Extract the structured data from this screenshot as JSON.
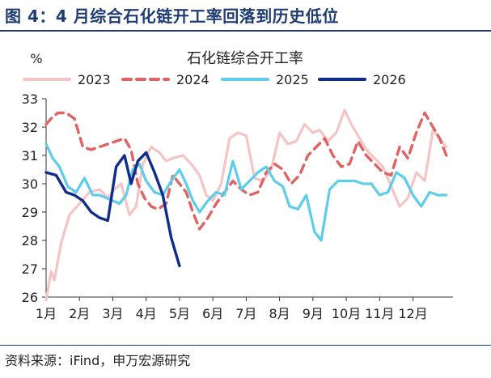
{
  "figure": {
    "title": "图 4：4 月综合石化链开工率回落到历史低位",
    "source": "资料来源：iFind，申万宏源研究"
  },
  "chart_data": {
    "type": "line",
    "title": "石化链综合开工率",
    "ylabel": "%",
    "xlabel": "",
    "ylim": [
      26,
      33
    ],
    "yticks": [
      26,
      27,
      28,
      29,
      30,
      31,
      32,
      33
    ],
    "x_axis": {
      "min": 1,
      "max": 13.2,
      "ticks": [
        1,
        2,
        3,
        4,
        5,
        6,
        7,
        8,
        9,
        10,
        11,
        12
      ],
      "tick_labels": [
        "1月",
        "2月",
        "3月",
        "4月",
        "5月",
        "6月",
        "7月",
        "8月",
        "9月",
        "10月",
        "11月",
        "12月"
      ]
    },
    "grid": false,
    "legend_position": "top",
    "series": [
      {
        "name": "2023",
        "color": "#f5c4c4",
        "dash": "solid",
        "x": [
          1.0,
          1.15,
          1.25,
          1.45,
          1.7,
          2.0,
          2.3,
          2.6,
          2.85,
          3.05,
          3.25,
          3.5,
          3.7,
          3.9,
          4.15,
          4.4,
          4.6,
          4.8,
          5.1,
          5.35,
          5.6,
          5.8,
          6.0,
          6.25,
          6.5,
          6.75,
          7.0,
          7.25,
          7.5,
          7.75,
          8.0,
          8.25,
          8.5,
          8.75,
          9.0,
          9.2,
          9.45,
          9.7,
          9.95,
          10.15,
          10.4,
          10.6,
          10.85,
          11.1,
          11.35,
          11.6,
          11.85,
          12.1,
          12.35,
          12.6,
          12.8,
          13.0
        ],
        "y": [
          25.9,
          26.9,
          26.6,
          27.9,
          28.9,
          29.3,
          29.7,
          29.8,
          29.5,
          29.8,
          30.0,
          28.9,
          29.2,
          30.7,
          31.3,
          31.1,
          30.8,
          30.9,
          31.0,
          30.7,
          30.3,
          29.6,
          29.4,
          30.0,
          31.6,
          31.8,
          31.7,
          30.2,
          30.1,
          30.5,
          31.8,
          31.4,
          31.5,
          32.1,
          31.8,
          31.9,
          31.5,
          31.8,
          32.6,
          32.1,
          31.6,
          31.2,
          30.9,
          30.6,
          29.9,
          29.2,
          29.5,
          30.4,
          30.1,
          31.9,
          31.6,
          31.3
        ]
      },
      {
        "name": "2024",
        "color": "#e06363",
        "dash": "dash",
        "x": [
          1.0,
          1.15,
          1.35,
          1.6,
          1.85,
          2.1,
          2.35,
          2.6,
          2.85,
          3.1,
          3.35,
          3.55,
          3.75,
          3.95,
          4.15,
          4.35,
          4.6,
          4.8,
          5.0,
          5.2,
          5.4,
          5.6,
          5.85,
          6.1,
          6.35,
          6.6,
          6.85,
          7.1,
          7.35,
          7.6,
          7.85,
          8.1,
          8.35,
          8.6,
          8.85,
          9.1,
          9.35,
          9.6,
          9.85,
          10.1,
          10.35,
          10.6,
          10.85,
          11.1,
          11.35,
          11.6,
          11.85,
          12.1,
          12.35,
          12.6,
          12.8,
          13.0
        ],
        "y": [
          32.1,
          32.3,
          32.5,
          32.5,
          32.3,
          31.3,
          31.2,
          31.3,
          31.4,
          31.5,
          31.6,
          31.2,
          30.0,
          29.5,
          29.2,
          29.1,
          29.3,
          30.3,
          30.0,
          29.7,
          29.0,
          28.4,
          28.8,
          29.3,
          29.7,
          30.1,
          29.8,
          29.6,
          29.7,
          30.4,
          30.7,
          30.5,
          30.0,
          30.3,
          31.0,
          31.3,
          31.6,
          31.0,
          30.6,
          30.7,
          31.5,
          31.0,
          30.7,
          30.4,
          30.3,
          31.3,
          30.9,
          31.8,
          32.5,
          32.0,
          31.6,
          31.0
        ]
      },
      {
        "name": "2025",
        "color": "#5ecdea",
        "dash": "solid",
        "x": [
          1.0,
          1.2,
          1.4,
          1.65,
          1.9,
          2.15,
          2.4,
          2.6,
          2.8,
          3.0,
          3.2,
          3.4,
          3.6,
          3.8,
          4.0,
          4.25,
          4.5,
          4.75,
          5.0,
          5.2,
          5.4,
          5.6,
          5.85,
          6.1,
          6.35,
          6.6,
          6.85,
          7.1,
          7.35,
          7.6,
          7.85,
          8.1,
          8.3,
          8.55,
          8.8,
          9.05,
          9.25,
          9.5,
          9.75,
          10.0,
          10.25,
          10.5,
          10.75,
          11.0,
          11.25,
          11.5,
          11.75,
          12.0,
          12.25,
          12.5,
          12.75,
          13.0
        ],
        "y": [
          31.4,
          30.9,
          30.6,
          29.9,
          29.7,
          30.2,
          29.6,
          29.6,
          29.5,
          29.4,
          29.3,
          29.6,
          30.5,
          30.7,
          30.1,
          29.7,
          29.6,
          30.1,
          30.5,
          30.0,
          29.4,
          29.0,
          29.4,
          29.7,
          29.6,
          30.8,
          29.8,
          30.1,
          30.4,
          30.6,
          30.1,
          29.9,
          29.2,
          29.1,
          29.6,
          28.3,
          28.0,
          29.8,
          30.1,
          30.1,
          30.1,
          30.0,
          30.0,
          29.6,
          29.7,
          30.4,
          30.2,
          29.6,
          29.2,
          29.7,
          29.6,
          29.6
        ]
      },
      {
        "name": "2026",
        "color": "#0f2d8a",
        "dash": "solid",
        "x": [
          1.0,
          1.3,
          1.6,
          1.85,
          2.1,
          2.35,
          2.6,
          2.85,
          3.1,
          3.35,
          3.55,
          3.75,
          4.0,
          4.25,
          4.5,
          4.75,
          5.0
        ],
        "y": [
          30.4,
          30.3,
          29.7,
          29.6,
          29.4,
          29.0,
          28.8,
          28.7,
          30.6,
          31.0,
          30.0,
          30.8,
          31.1,
          30.4,
          29.6,
          28.1,
          27.1
        ]
      }
    ]
  }
}
